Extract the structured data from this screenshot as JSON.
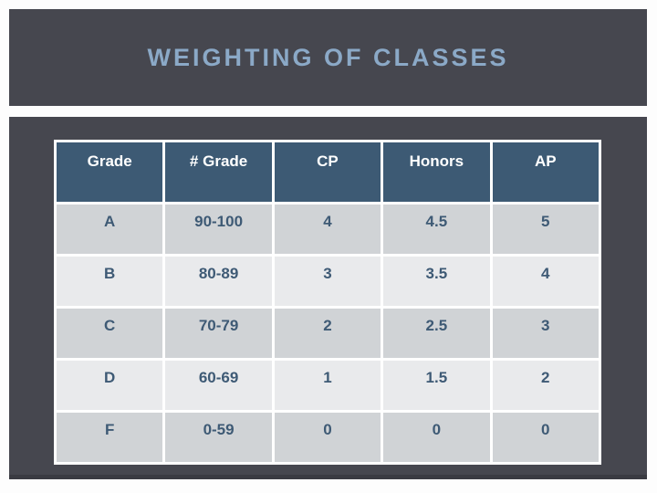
{
  "slide": {
    "title": "WEIGHTING OF CLASSES"
  },
  "table": {
    "headers": [
      "Grade",
      "# Grade",
      "CP",
      "Honors",
      "AP"
    ],
    "rows": [
      {
        "cells": [
          "A",
          "90-100",
          "4",
          "4.5",
          "5"
        ]
      },
      {
        "cells": [
          "B",
          "80-89",
          "3",
          "3.5",
          "4"
        ]
      },
      {
        "cells": [
          "C",
          "70-79",
          "2",
          "2.5",
          "3"
        ]
      },
      {
        "cells": [
          "D",
          "60-69",
          "1",
          "1.5",
          "2"
        ]
      },
      {
        "cells": [
          "F",
          "0-59",
          "0",
          "0",
          "0"
        ]
      }
    ]
  },
  "colors": {
    "slide_bg": "#fdfdfd",
    "band_bg": "#46474f",
    "band_edge": "#3a3b42",
    "title_text": "#8ba9c7",
    "header_bg": "#3d5a74",
    "header_text": "#ffffff",
    "row_gray": "#d0d3d6",
    "row_light": "#e9eaec",
    "cell_text": "#3e5a75",
    "grid_border": "#ffffff"
  }
}
